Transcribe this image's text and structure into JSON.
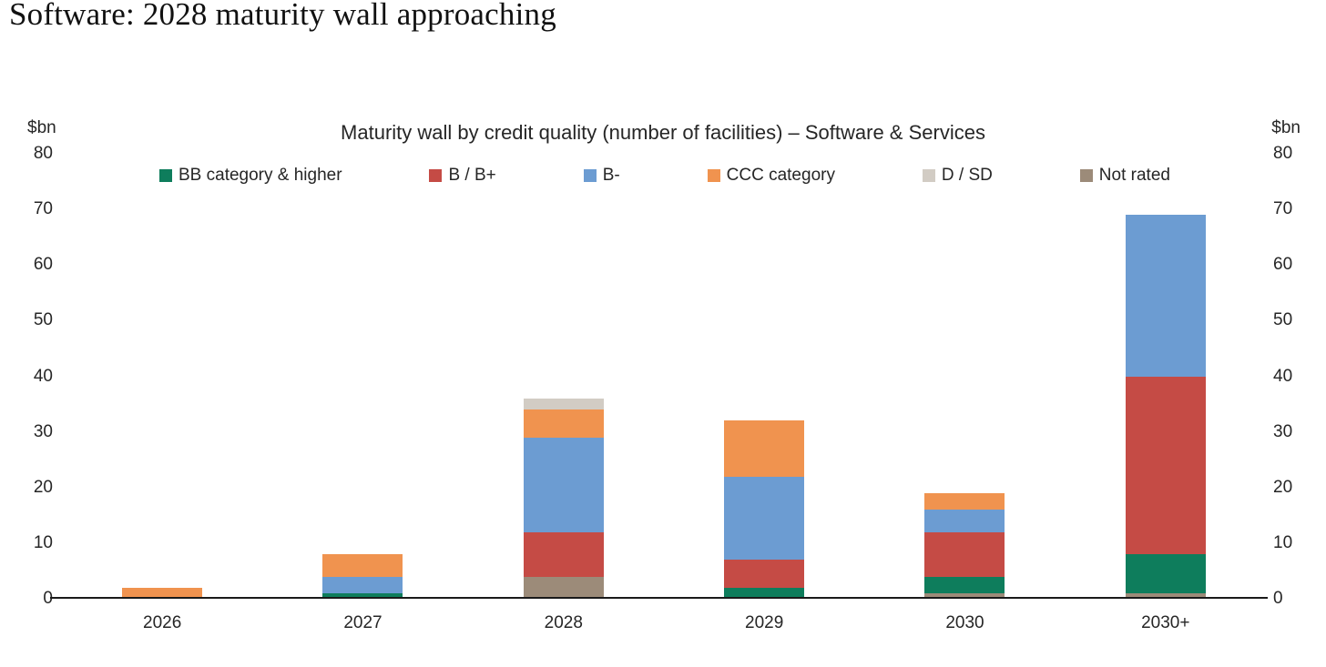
{
  "page": {
    "title": "Software: 2028 maturity wall approaching"
  },
  "chart_data": {
    "type": "bar",
    "stacked": true,
    "title": "Maturity wall by credit quality (number of facilities) – Software & Services",
    "unit_left": "$bn",
    "unit_right": "$bn",
    "categories": [
      "2026",
      "2027",
      "2028",
      "2029",
      "2030",
      "2030+"
    ],
    "series": [
      {
        "name": "BB category & higher",
        "color": "#0E7D5C",
        "values": [
          0,
          1,
          0,
          2,
          3,
          7
        ]
      },
      {
        "name": "B / B+",
        "color": "#C54B45",
        "values": [
          0,
          0,
          8,
          5,
          8,
          32
        ]
      },
      {
        "name": "B-",
        "color": "#6C9CD2",
        "values": [
          0,
          3,
          17,
          15,
          4,
          29
        ]
      },
      {
        "name": "CCC category",
        "color": "#F0934F",
        "values": [
          2,
          4,
          5,
          10,
          3,
          0
        ]
      },
      {
        "name": "D / SD",
        "color": "#D2CCC4",
        "values": [
          0,
          0,
          2,
          0,
          0,
          0
        ]
      },
      {
        "name": "Not rated",
        "color": "#9C8B79",
        "values": [
          0,
          0,
          4,
          0,
          1,
          1
        ]
      }
    ],
    "stack_order_bottom_to_top": [
      "Not rated",
      "BB category & higher",
      "B / B+",
      "B-",
      "CCC category",
      "D / SD"
    ],
    "ylim": [
      0,
      80
    ],
    "ytick_step": 10,
    "axis_text_color": "#262626",
    "axis_line_color": "#1a1a1a",
    "legend_position": "top",
    "grid": false
  }
}
